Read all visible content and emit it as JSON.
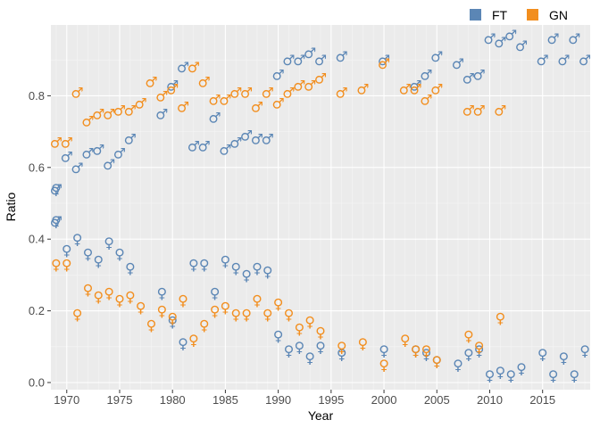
{
  "chart_data": {
    "type": "scatter",
    "xlabel": "Year",
    "ylabel": "Ratio",
    "xlim": [
      1968.5,
      2019.5
    ],
    "ylim": [
      0,
      1.0
    ],
    "xticks": [
      1970,
      1975,
      1980,
      1985,
      1990,
      1995,
      2000,
      2005,
      2010,
      2015
    ],
    "xtick_labels": [
      "1970",
      "1975",
      "1980",
      "1985",
      "1990",
      "1995",
      "2000",
      "2005",
      "2010",
      "2015"
    ],
    "yticks": [
      0.0,
      0.2,
      0.4,
      0.6,
      0.8
    ],
    "ytick_labels": [
      "0.0",
      "0.2",
      "0.4",
      "0.6",
      "0.8"
    ],
    "grid": true,
    "legend": "top-right",
    "markers": {
      "male": "♂",
      "female": "♀"
    },
    "series": [
      {
        "name": "FT",
        "color": "#5b86b5",
        "x": [
          1969,
          1969,
          1970,
          1971,
          1972,
          1973,
          1974,
          1975,
          1976,
          1979,
          1980,
          1981,
          1982,
          1983,
          1984,
          1985,
          1986,
          1987,
          1988,
          1989,
          1990,
          1991,
          1992,
          1993,
          1994,
          1996,
          2000,
          2003,
          2004,
          2005,
          2007,
          2008,
          2009,
          2010,
          2011,
          2012,
          2013,
          2015,
          2016,
          2017,
          2018,
          2019
        ],
        "male": [
          0.54,
          0.45,
          0.63,
          0.6,
          0.64,
          0.65,
          0.61,
          0.64,
          0.68,
          0.75,
          0.83,
          0.88,
          0.66,
          0.66,
          0.74,
          0.65,
          0.67,
          0.69,
          0.68,
          0.68,
          0.86,
          0.9,
          0.9,
          0.92,
          0.9,
          0.91,
          0.9,
          0.83,
          0.86,
          0.91,
          0.89,
          0.85,
          0.86,
          0.96,
          0.95,
          0.97,
          0.94,
          0.9,
          0.96,
          0.9,
          0.96,
          0.9
        ],
        "female": [
          0.54,
          0.45,
          0.37,
          0.4,
          0.36,
          0.34,
          0.39,
          0.36,
          0.32,
          0.25,
          0.17,
          0.11,
          0.33,
          0.33,
          0.25,
          0.34,
          0.32,
          0.3,
          0.32,
          0.31,
          0.13,
          0.09,
          0.1,
          0.07,
          0.1,
          0.08,
          0.09,
          0.09,
          0.08,
          0.06,
          0.05,
          0.08,
          0.09,
          0.02,
          0.03,
          0.02,
          0.04,
          0.08,
          0.02,
          0.07,
          0.02,
          0.09
        ]
      },
      {
        "name": "GN",
        "color": "#f28e1e",
        "x": [
          1969,
          1970,
          1971,
          1972,
          1973,
          1974,
          1975,
          1976,
          1977,
          1978,
          1979,
          1980,
          1981,
          1982,
          1983,
          1984,
          1985,
          1986,
          1987,
          1988,
          1989,
          1990,
          1991,
          1992,
          1993,
          1994,
          1996,
          1998,
          2000,
          2002,
          2003,
          2004,
          2005,
          2008,
          2009,
          2011
        ],
        "male": [
          0.67,
          0.67,
          0.81,
          0.73,
          0.75,
          0.75,
          0.76,
          0.76,
          0.78,
          0.84,
          0.8,
          0.82,
          0.77,
          0.88,
          0.84,
          0.79,
          0.79,
          0.81,
          0.81,
          0.77,
          0.81,
          0.78,
          0.81,
          0.83,
          0.83,
          0.85,
          0.81,
          0.82,
          0.89,
          0.82,
          0.82,
          0.79,
          0.82,
          0.76,
          0.76,
          0.76
        ],
        "female": [
          0.33,
          0.33,
          0.19,
          0.26,
          0.24,
          0.25,
          0.23,
          0.24,
          0.21,
          0.16,
          0.2,
          0.18,
          0.23,
          0.12,
          0.16,
          0.2,
          0.21,
          0.19,
          0.19,
          0.23,
          0.19,
          0.22,
          0.19,
          0.15,
          0.17,
          0.14,
          0.1,
          0.11,
          0.05,
          0.12,
          0.09,
          0.09,
          0.06,
          0.13,
          0.1,
          0.18
        ]
      }
    ]
  }
}
